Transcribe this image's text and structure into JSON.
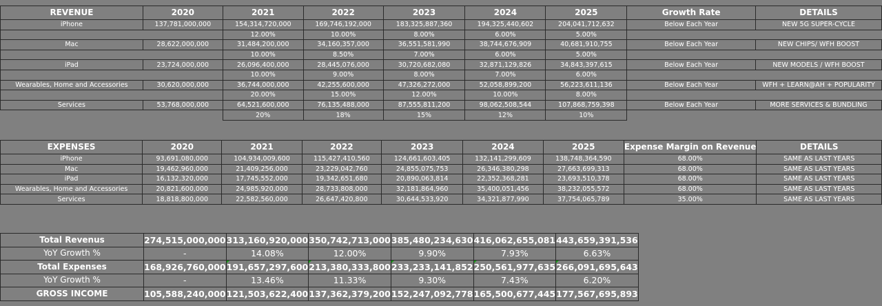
{
  "revenue": {
    "headers": [
      "REVENUE",
      "2020",
      "2021",
      "2022",
      "2023",
      "2024",
      "2025",
      "Growth Rate",
      "DETAILS"
    ],
    "rows": [
      {
        "segment": "iPhone",
        "values": [
          "137,781,000,000",
          "154,314,720,000",
          "169,746,192,000",
          "183,325,887,360",
          "194,325,440,602",
          "204,041,712,632"
        ],
        "growth_rate": "Below Each Year",
        "details": "NEW 5G SUPER-CYCLE",
        "growth": [
          "12.00%",
          "10.00%",
          "8.00%",
          "6.00%",
          "5.00%"
        ]
      },
      {
        "segment": "Mac",
        "values": [
          "28,622,000,000",
          "31,484,200,000",
          "34,160,357,000",
          "36,551,581,990",
          "38,744,676,909",
          "40,681,910,755"
        ],
        "growth_rate": "Below Each Year",
        "details": "NEW CHIPS/ WFH BOOST",
        "growth": [
          "10.00%",
          "8.50%",
          "7.00%",
          "6.00%",
          "5.00%"
        ]
      },
      {
        "segment": "iPad",
        "values": [
          "23,724,000,000",
          "26,096,400,000",
          "28,445,076,000",
          "30,720,682,080",
          "32,871,129,826",
          "34,843,397,615"
        ],
        "growth_rate": "Below Each Year",
        "details": "NEW MODELS / WFH BOOST",
        "growth": [
          "10.00%",
          "9.00%",
          "8.00%",
          "7.00%",
          "6.00%"
        ]
      },
      {
        "segment": "Wearables, Home and Accessories",
        "values": [
          "30,620,000,000",
          "36,744,000,000",
          "42,255,600,000",
          "47,326,272,000",
          "52,058,899,200",
          "56,223,611,136"
        ],
        "growth_rate": "Below Each Year",
        "details": "WFH + LEARN@AH + POPULARITY",
        "growth": [
          "20.00%",
          "15.00%",
          "12.00%",
          "10.00%",
          "8.00%"
        ]
      },
      {
        "segment": "Services",
        "values": [
          "53,768,000,000",
          "64,521,600,000",
          "76,135,488,000",
          "87,555,811,200",
          "98,062,508,544",
          "107,868,759,398"
        ],
        "growth_rate": "Below Each Year",
        "details": "MORE SERVICES & BUNDLING",
        "growth": [
          "20%",
          "18%",
          "15%",
          "12%",
          "10%"
        ]
      }
    ]
  },
  "expenses": {
    "headers": [
      "EXPENSES",
      "2020",
      "2021",
      "2022",
      "2023",
      "2024",
      "2025",
      "Expense Margin on Revenue",
      "DETAILS"
    ],
    "rows": [
      {
        "segment": "iPhone",
        "values": [
          "93,691,080,000",
          "104,934,009,600",
          "115,427,410,560",
          "124,661,603,405",
          "132,141,299,609",
          "138,748,364,590"
        ],
        "margin": "68.00%",
        "details": "SAME AS LAST YEARS"
      },
      {
        "segment": "Mac",
        "values": [
          "19,462,960,000",
          "21,409,256,000",
          "23,229,042,760",
          "24,855,075,753",
          "26,346,380,298",
          "27,663,699,313"
        ],
        "margin": "68.00%",
        "details": "SAME AS LAST YEARS"
      },
      {
        "segment": "iPad",
        "values": [
          "16,132,320,000",
          "17,745,552,000",
          "19,342,651,680",
          "20,890,063,814",
          "22,352,368,281",
          "23,693,510,378"
        ],
        "margin": "68.00%",
        "details": "SAME AS LAST YEARS"
      },
      {
        "segment": "Wearables, Home and Accessories",
        "values": [
          "20,821,600,000",
          "24,985,920,000",
          "28,733,808,000",
          "32,181,864,960",
          "35,400,051,456",
          "38,232,055,572"
        ],
        "margin": "68.00%",
        "details": "SAME AS LAST YEARS"
      },
      {
        "segment": "Services",
        "values": [
          "18,818,800,000",
          "22,582,560,000",
          "26,647,420,800",
          "30,644,533,920",
          "34,321,877,990",
          "37,754,065,789"
        ],
        "margin": "35.00%",
        "details": "SAME AS LAST YEARS"
      }
    ]
  },
  "totals": {
    "rows": [
      {
        "label": "Total Revenus",
        "bold": true,
        "values": [
          "274,515,000,000",
          "313,160,920,000",
          "350,742,713,000",
          "385,480,234,630",
          "416,062,655,081",
          "443,659,391,536"
        ]
      },
      {
        "label": "YoY Growth %",
        "bold": false,
        "values": [
          "-",
          "14.08%",
          "12.00%",
          "9.90%",
          "7.93%",
          "6.63%"
        ]
      },
      {
        "label": "Total Expenses",
        "bold": true,
        "flagged": true,
        "values": [
          "168,926,760,000",
          "191,657,297,600",
          "213,380,333,800",
          "233,233,141,852",
          "250,561,977,635",
          "266,091,695,643"
        ]
      },
      {
        "label": "YoY Growth %",
        "bold": false,
        "values": [
          "-",
          "13.46%",
          "11.33%",
          "9.30%",
          "7.43%",
          "6.20%"
        ]
      },
      {
        "label": "GROSS INCOME",
        "bold": true,
        "values": [
          "105,588,240,000",
          "121,503,622,400",
          "137,362,379,200",
          "152,247,092,778",
          "165,500,677,445",
          "177,567,695,893"
        ]
      }
    ]
  },
  "colors": {
    "background": "#808080",
    "text": "#ffffff",
    "border": "#2a2a2a",
    "error_flag": "#1a9a1a"
  }
}
